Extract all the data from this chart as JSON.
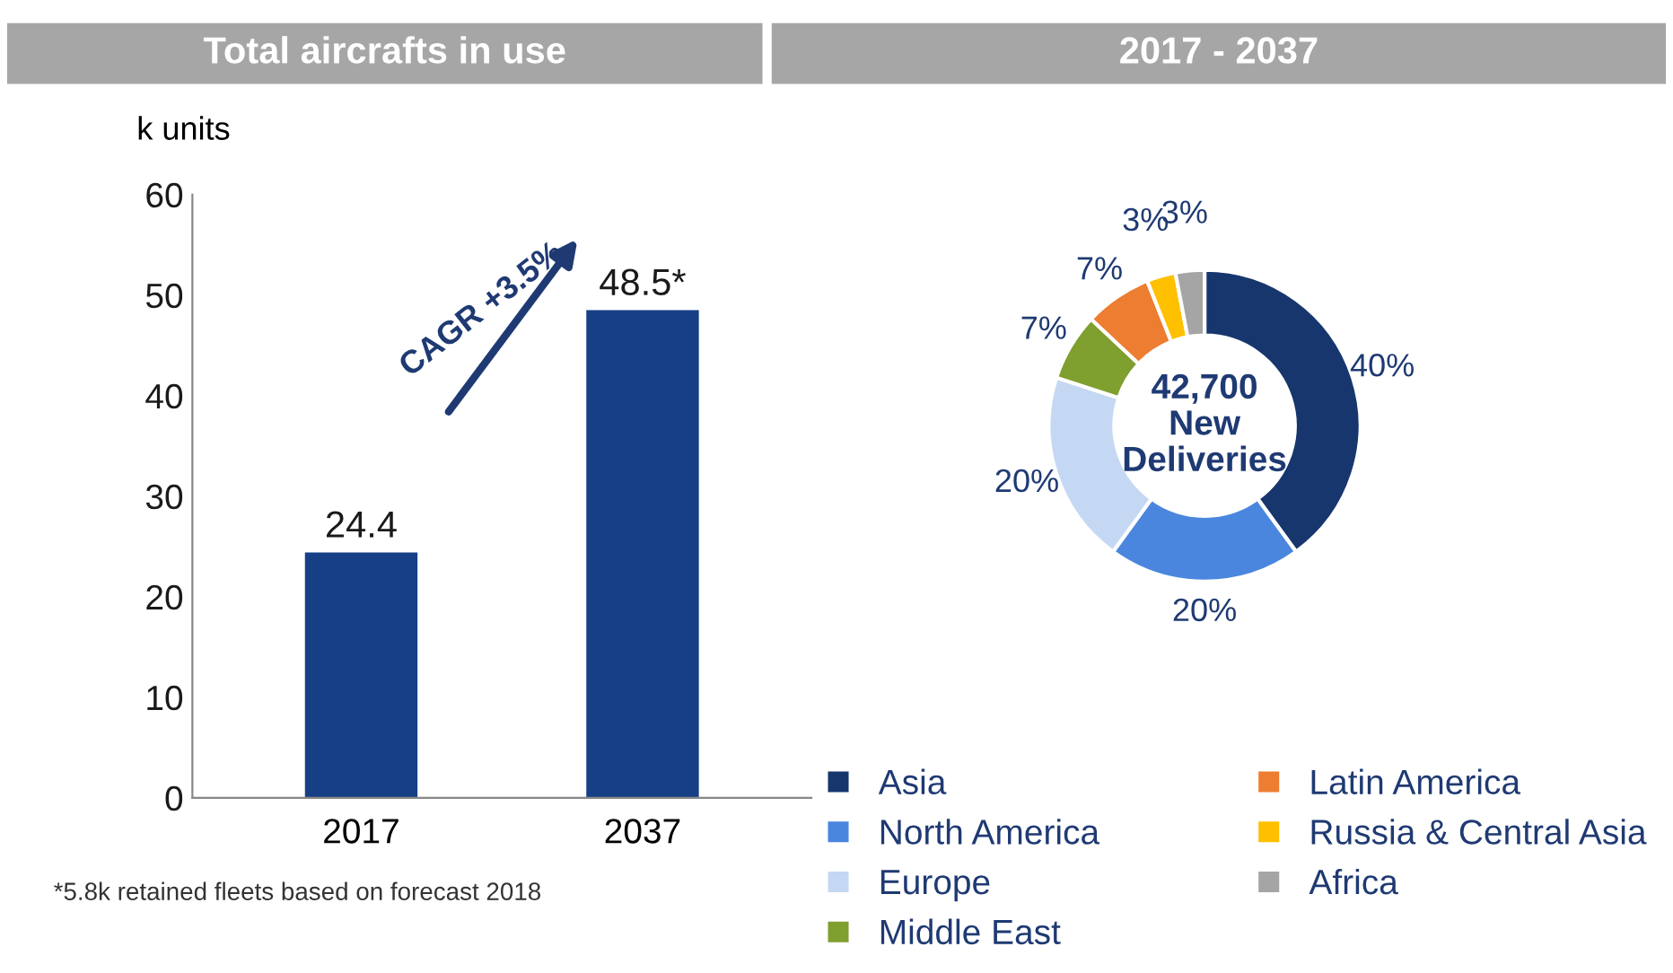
{
  "chart_data": [
    {
      "type": "bar",
      "title": "Total aircrafts in use",
      "ylabel": "k units",
      "categories": [
        "2017",
        "2037"
      ],
      "values": [
        24.4,
        48.5
      ],
      "value_labels": [
        "24.4",
        "48.5*"
      ],
      "color": "#173f86",
      "ylim": [
        0,
        60
      ],
      "yticks": [
        0,
        10,
        20,
        30,
        40,
        50,
        60
      ],
      "grid": false,
      "legend": false,
      "annotations": [
        "CAGR +3.5%",
        "*5.8k retained fleets based on forecast 2018"
      ]
    },
    {
      "type": "donut",
      "title": "2017 - 2037",
      "categories": [
        "Asia",
        "North America",
        "Europe",
        "Middle East",
        "Latin America",
        "Russia & Central Asia",
        "Africa"
      ],
      "values": [
        40,
        20,
        20,
        7,
        7,
        3,
        3
      ],
      "colors": [
        "#17366e",
        "#4a86de",
        "#c5d8f3",
        "#7f9f2e",
        "#ed7d31",
        "#ffc000",
        "#a5a5a5"
      ],
      "value_labels": [
        "40%",
        "20%",
        "20%",
        "7%",
        "7%",
        "3%",
        "3%"
      ],
      "legend": "bottom",
      "annotations": [
        "42,700\nNew\nDeliveries"
      ]
    }
  ]
}
